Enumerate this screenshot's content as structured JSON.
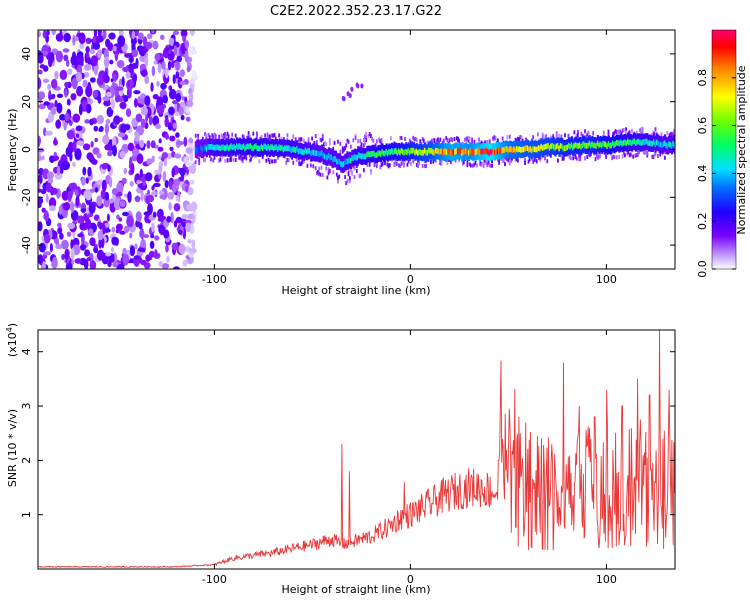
{
  "title": "C2E2.2022.352.23.17.G22",
  "colors": {
    "snr_line": "#e8393a",
    "axis": "#000000"
  },
  "chart_data": [
    {
      "type": "heatmap",
      "xlabel": "Height of straight line (km)",
      "ylabel": "Frequency (Hz)",
      "xlim": [
        -190,
        135
      ],
      "ylim": [
        -50,
        50
      ],
      "x_ticks": [
        -100,
        0,
        100
      ],
      "y_ticks": [
        -40,
        -20,
        0,
        20,
        40
      ],
      "x_tick_labels": [
        "-100",
        "0",
        "100"
      ],
      "y_tick_labels": [
        "-40",
        "-20",
        "0",
        "20",
        "40"
      ],
      "colorbar": {
        "label": "Normalized spectral amplitude",
        "range": [
          0,
          1
        ],
        "ticks": [
          0.0,
          0.2,
          0.4,
          0.6,
          0.8
        ],
        "tick_labels": [
          "0.0",
          "0.2",
          "0.4",
          "0.6",
          "0.8"
        ],
        "colormap": [
          "#ffffff",
          "#b98cff",
          "#6a00ff",
          "#0000ff",
          "#00ffff",
          "#00ff00",
          "#ffff00",
          "#ff8800",
          "#ff0000",
          "#ff0080"
        ]
      },
      "noise_region": {
        "x_from": -190,
        "x_to": -110,
        "y_from": -50,
        "y_to": 50
      },
      "signal_track": {
        "x": [
          -110,
          -100,
          -80,
          -60,
          -45,
          -35,
          -28,
          -20,
          -10,
          0,
          10,
          20,
          30,
          40,
          50,
          60,
          70,
          80,
          90,
          100,
          110,
          120,
          130
        ],
        "y": [
          0,
          1,
          1,
          0,
          -2,
          -6,
          -3,
          -2,
          -1,
          -1,
          -1,
          -1,
          -1,
          -1,
          0,
          0,
          1,
          1,
          2,
          2,
          3,
          3,
          2
        ],
        "peak_amplitude": [
          0.3,
          0.45,
          0.5,
          0.45,
          0.4,
          0.4,
          0.45,
          0.5,
          0.55,
          0.6,
          0.7,
          0.85,
          0.8,
          0.95,
          0.75,
          0.7,
          0.65,
          0.6,
          0.6,
          0.55,
          0.5,
          0.45,
          0.4
        ]
      },
      "side_trace": {
        "x": [
          -35,
          -25
        ],
        "y": [
          20,
          28
        ]
      }
    },
    {
      "type": "line",
      "xlabel": "Height of straight line (km)",
      "ylabel": "SNR (10 * v/v)",
      "y_multiplier": "(x10",
      "y_multiplier_exp": "4",
      "y_multiplier_close": ")",
      "xlim": [
        -190,
        135
      ],
      "ylim": [
        0,
        4.4
      ],
      "x_ticks": [
        -100,
        0,
        100
      ],
      "y_ticks": [
        1,
        2,
        3,
        4
      ],
      "x_tick_labels": [
        "-100",
        "0",
        "100"
      ],
      "y_tick_labels": [
        "1",
        "2",
        "3",
        "4"
      ],
      "series": [
        {
          "envelope_x": [
            -190,
            -120,
            -100,
            -90,
            -80,
            -70,
            -60,
            -50,
            -45,
            -40,
            -35,
            -30,
            -25,
            -20,
            -15,
            -10,
            -5,
            0,
            5,
            10,
            15,
            20,
            25,
            30,
            35,
            40,
            45,
            50,
            55,
            60,
            65,
            70,
            75,
            80,
            85,
            90,
            95,
            100,
            105,
            110,
            115,
            120,
            125,
            130,
            135
          ],
          "envelope_y": [
            0.04,
            0.04,
            0.08,
            0.2,
            0.25,
            0.3,
            0.38,
            0.45,
            0.5,
            0.55,
            0.45,
            0.5,
            0.55,
            0.6,
            0.7,
            0.8,
            0.95,
            1.0,
            1.1,
            1.2,
            1.3,
            1.4,
            1.45,
            1.5,
            1.5,
            1.45,
            1.4,
            1.5,
            1.1,
            1.0,
            0.95,
            0.9,
            0.9,
            0.95,
            1.0,
            1.0,
            1.05,
            1.0,
            1.1,
            1.05,
            1.1,
            1.1,
            1.0,
            1.0,
            1.0
          ],
          "spikes": [
            {
              "x": -35,
              "y": 2.3
            },
            {
              "x": -31,
              "y": 1.8
            },
            {
              "x": -3,
              "y": 1.6
            },
            {
              "x": 45,
              "y": 2.0
            },
            {
              "x": 56,
              "y": 2.5
            },
            {
              "x": 72,
              "y": 2.3
            },
            {
              "x": 78,
              "y": 3.8
            },
            {
              "x": 86,
              "y": 3.0
            },
            {
              "x": 94,
              "y": 2.8
            },
            {
              "x": 100,
              "y": 3.3
            },
            {
              "x": 108,
              "y": 3.0
            },
            {
              "x": 116,
              "y": 3.5
            },
            {
              "x": 122,
              "y": 3.2
            },
            {
              "x": 127,
              "y": 4.4
            },
            {
              "x": 132,
              "y": 3.3
            }
          ]
        }
      ]
    }
  ]
}
